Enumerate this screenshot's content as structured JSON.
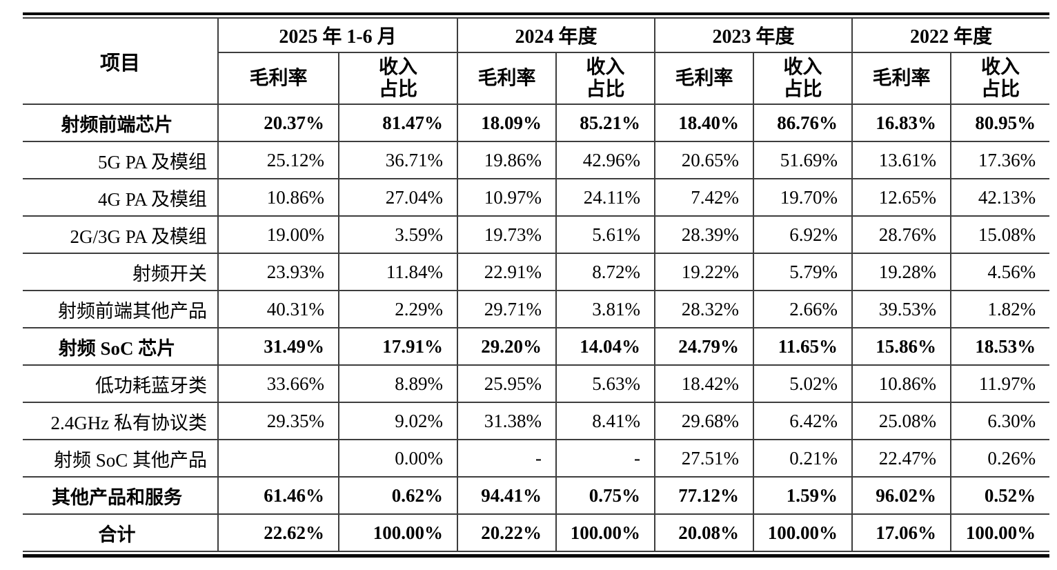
{
  "table": {
    "item_header": "项目",
    "period_headers": [
      "2025 年 1-6 月",
      "2024 年度",
      "2023 年度",
      "2022 年度"
    ],
    "sub_headers": {
      "margin": "毛利率",
      "share": "收入\n占比"
    },
    "rows": [
      {
        "label": "射频前端芯片",
        "style": "section",
        "values": [
          "20.37%",
          "81.47%",
          "18.09%",
          "85.21%",
          "18.40%",
          "86.76%",
          "16.83%",
          "80.95%"
        ]
      },
      {
        "label": "5G PA 及模组",
        "style": "sub",
        "values": [
          "25.12%",
          "36.71%",
          "19.86%",
          "42.96%",
          "20.65%",
          "51.69%",
          "13.61%",
          "17.36%"
        ]
      },
      {
        "label": "4G PA 及模组",
        "style": "sub",
        "values": [
          "10.86%",
          "27.04%",
          "10.97%",
          "24.11%",
          "7.42%",
          "19.70%",
          "12.65%",
          "42.13%"
        ]
      },
      {
        "label": "2G/3G PA 及模组",
        "style": "sub",
        "values": [
          "19.00%",
          "3.59%",
          "19.73%",
          "5.61%",
          "28.39%",
          "6.92%",
          "28.76%",
          "15.08%"
        ]
      },
      {
        "label": "射频开关",
        "style": "sub",
        "values": [
          "23.93%",
          "11.84%",
          "22.91%",
          "8.72%",
          "19.22%",
          "5.79%",
          "19.28%",
          "4.56%"
        ]
      },
      {
        "label": "射频前端其他产品",
        "style": "sub",
        "values": [
          "40.31%",
          "2.29%",
          "29.71%",
          "3.81%",
          "28.32%",
          "2.66%",
          "39.53%",
          "1.82%"
        ]
      },
      {
        "label": "射频 SoC 芯片",
        "style": "section",
        "values": [
          "31.49%",
          "17.91%",
          "29.20%",
          "14.04%",
          "24.79%",
          "11.65%",
          "15.86%",
          "18.53%"
        ]
      },
      {
        "label": "低功耗蓝牙类",
        "style": "sub",
        "values": [
          "33.66%",
          "8.89%",
          "25.95%",
          "5.63%",
          "18.42%",
          "5.02%",
          "10.86%",
          "11.97%"
        ]
      },
      {
        "label": "2.4GHz 私有协议类",
        "style": "sub",
        "values": [
          "29.35%",
          "9.02%",
          "31.38%",
          "8.41%",
          "29.68%",
          "6.42%",
          "25.08%",
          "6.30%"
        ]
      },
      {
        "label": "射频 SoC 其他产品",
        "style": "sub",
        "values": [
          "",
          "0.00%",
          "-",
          "-",
          "27.51%",
          "0.21%",
          "22.47%",
          "0.26%"
        ]
      },
      {
        "label": "其他产品和服务",
        "style": "section",
        "values": [
          "61.46%",
          "0.62%",
          "94.41%",
          "0.75%",
          "77.12%",
          "1.59%",
          "96.02%",
          "0.52%"
        ]
      },
      {
        "label": "合计",
        "style": "section",
        "values": [
          "22.62%",
          "100.00%",
          "20.22%",
          "100.00%",
          "20.08%",
          "100.00%",
          "17.06%",
          "100.00%"
        ]
      }
    ]
  }
}
